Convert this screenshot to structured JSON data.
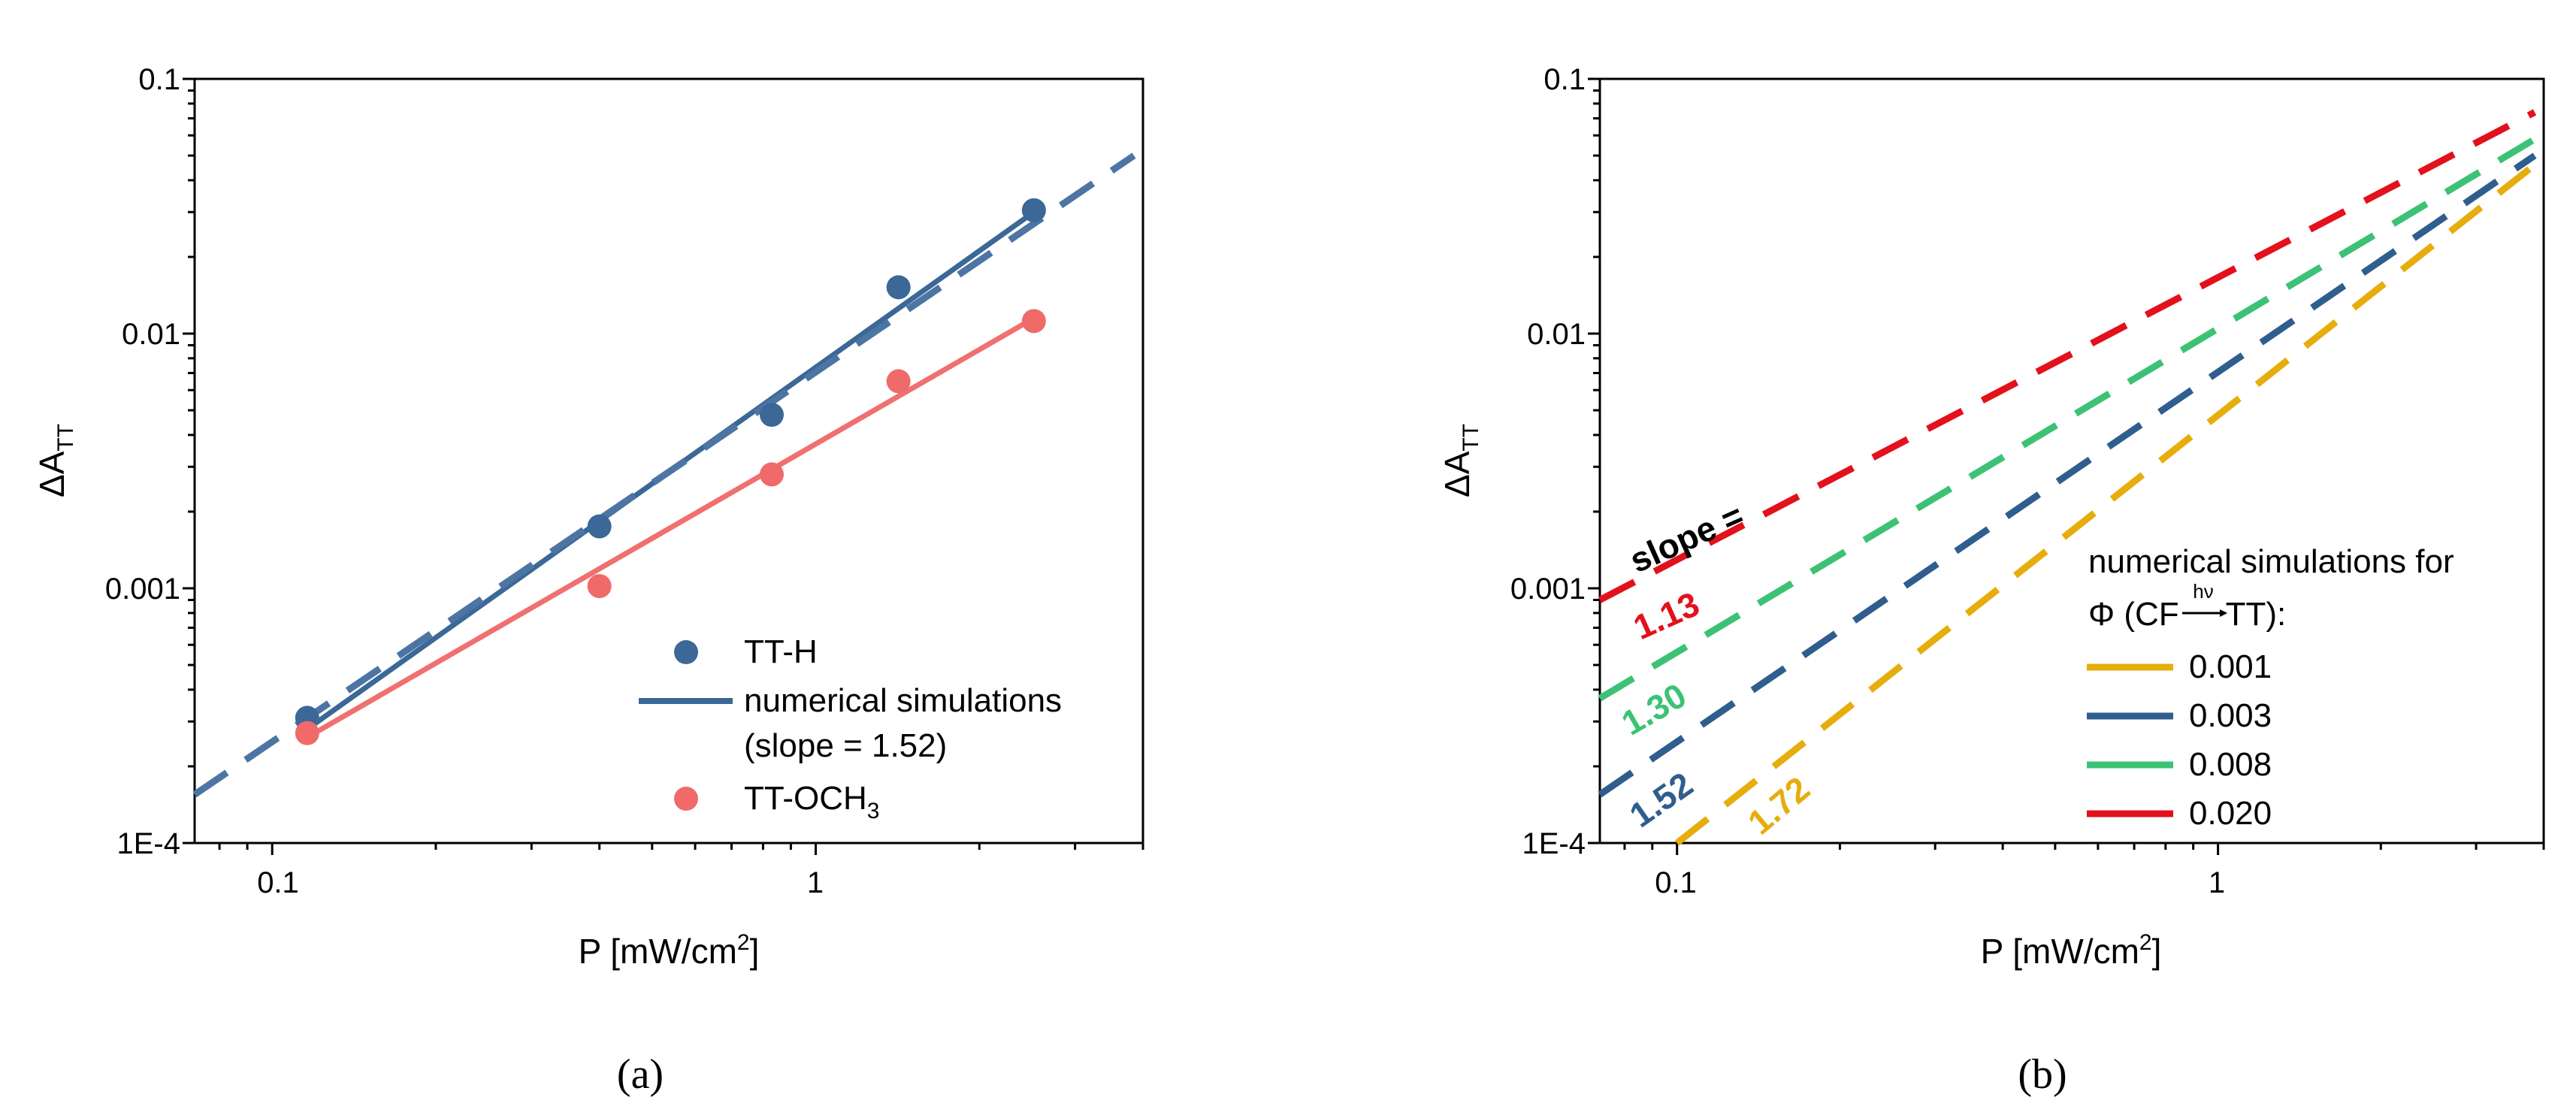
{
  "colors": {
    "blue": "#3B6896",
    "blue_dark": "#2F5E8E",
    "red_point": "#F06A6A",
    "red_line": "#F07070",
    "yellow": "#E6AD0C",
    "green": "#3DC275",
    "red": "#E3111B",
    "black": "#000000"
  },
  "chart_data": [
    {
      "id": "a",
      "type": "scatter",
      "scale": "log-log",
      "panel_label": "(a)",
      "xlabel": "P [mW/cm²]",
      "ylabel": "ΔA_TT",
      "xlim": [
        0.072,
        4.0
      ],
      "ylim": [
        0.0001,
        0.1
      ],
      "xticks": [
        {
          "value": 0.1,
          "label": "0.1"
        },
        {
          "value": 1,
          "label": "1"
        }
      ],
      "yticks": [
        {
          "value": 0.0001,
          "label": "1E-4"
        },
        {
          "value": 0.001,
          "label": "0.001"
        },
        {
          "value": 0.01,
          "label": "0.01"
        },
        {
          "value": 0.1,
          "label": "0.1"
        }
      ],
      "legend_position": "bottom-right",
      "series": [
        {
          "name": "TT-H",
          "kind": "points",
          "color": "#3B6896",
          "x": [
            0.116,
            0.4,
            0.83,
            1.42,
            2.52
          ],
          "y": [
            0.00031,
            0.00175,
            0.0048,
            0.0152,
            0.0305
          ]
        },
        {
          "name": "numerical simulations (slope = 1.52)",
          "kind": "solid",
          "color": "#3B6896",
          "x": [
            0.116,
            2.52
          ],
          "y": [
            0.00028,
            0.03
          ]
        },
        {
          "name": "numerical simulations (slope = 1.52)",
          "kind": "dashed",
          "color": "#4C75A3",
          "x": [
            0.072,
            3.85
          ],
          "y": [
            0.000155,
            0.05
          ]
        },
        {
          "name": "TT-OCH3",
          "kind": "points",
          "color": "#F06A6A",
          "x": [
            0.116,
            0.4,
            0.83,
            1.42,
            2.52
          ],
          "y": [
            0.00027,
            0.00102,
            0.0028,
            0.0065,
            0.0112
          ]
        },
        {
          "name": "TT-OCH3 fit",
          "kind": "solid",
          "color": "#F07070",
          "x": [
            0.116,
            2.52
          ],
          "y": [
            0.00026,
            0.0115
          ]
        }
      ],
      "legend": [
        {
          "label": "TT-H",
          "symbol": "point",
          "color": "#3B6896"
        },
        {
          "label": "numerical simulations",
          "label2": "(slope = 1.52)",
          "symbol": "line",
          "color": "#3B6896"
        },
        {
          "label": "TT-OCH",
          "sub": "3",
          "symbol": "point",
          "color": "#F06A6A"
        }
      ]
    },
    {
      "id": "b",
      "type": "line",
      "scale": "log-log",
      "panel_label": "(b)",
      "xlabel": "P [mW/cm²]",
      "ylabel": "ΔA_TT",
      "xlim": [
        0.072,
        4.0
      ],
      "ylim": [
        0.0001,
        0.1
      ],
      "xticks": [
        {
          "value": 0.1,
          "label": "0.1"
        },
        {
          "value": 1,
          "label": "1"
        }
      ],
      "yticks": [
        {
          "value": 0.0001,
          "label": "1E-4"
        },
        {
          "value": 0.001,
          "label": "0.001"
        },
        {
          "value": 0.01,
          "label": "0.01"
        },
        {
          "value": 0.1,
          "label": "0.1"
        }
      ],
      "legend_title": "numerical simulations for",
      "legend_subtitle": "Φ (CF→TT):",
      "legend_arrow_label": "hν",
      "legend_position": "bottom-right",
      "slope_prefix": "slope =",
      "series": [
        {
          "name": "0.001",
          "slope": "1.72",
          "color": "#E6AD0C",
          "x0": 0.1,
          "y0": 0.0001,
          "x1": 3.85,
          "y1": 0.046
        },
        {
          "name": "0.003",
          "slope": "1.52",
          "color": "#2F5E8E",
          "x0": 0.072,
          "y0": 0.000155,
          "x1": 3.85,
          "y1": 0.05
        },
        {
          "name": "0.008",
          "slope": "1.30",
          "color": "#3DC275",
          "x0": 0.072,
          "y0": 0.00037,
          "x1": 3.85,
          "y1": 0.058
        },
        {
          "name": "0.020",
          "slope": "1.13",
          "color": "#E3111B",
          "x0": 0.072,
          "y0": 0.0009,
          "x1": 3.85,
          "y1": 0.074
        }
      ]
    }
  ]
}
